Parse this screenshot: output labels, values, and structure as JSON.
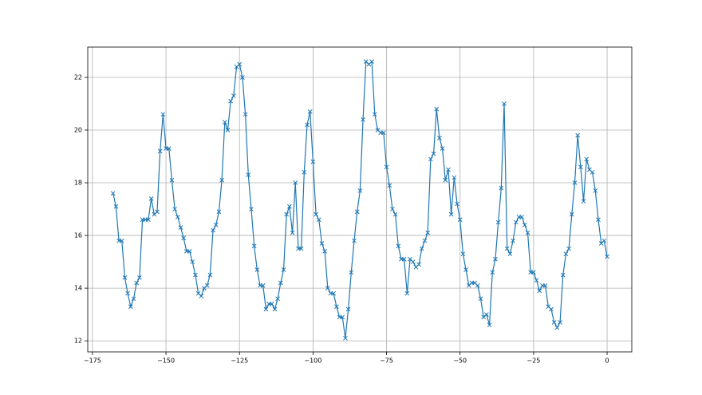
{
  "chart_data": {
    "type": "line",
    "marker": "x",
    "grid": true,
    "x": [
      -168,
      -167,
      -166,
      -165,
      -164,
      -163,
      -162,
      -161,
      -160,
      -159,
      -158,
      -157,
      -156,
      -155,
      -154,
      -153,
      -152,
      -151,
      -150,
      -149,
      -148,
      -147,
      -146,
      -145,
      -144,
      -143,
      -142,
      -141,
      -140,
      -139,
      -138,
      -137,
      -136,
      -135,
      -134,
      -133,
      -132,
      -131,
      -130,
      -129,
      -128,
      -127,
      -126,
      -125,
      -124,
      -123,
      -122,
      -121,
      -120,
      -119,
      -118,
      -117,
      -116,
      -115,
      -114,
      -113,
      -112,
      -111,
      -110,
      -109,
      -108,
      -107,
      -106,
      -105,
      -104,
      -103,
      -102,
      -101,
      -100,
      -99,
      -98,
      -97,
      -96,
      -95,
      -94,
      -93,
      -92,
      -91,
      -90,
      -89,
      -88,
      -87,
      -86,
      -85,
      -84,
      -83,
      -82,
      -81,
      -80,
      -79,
      -78,
      -77,
      -76,
      -75,
      -74,
      -73,
      -72,
      -71,
      -70,
      -69,
      -68,
      -67,
      -66,
      -65,
      -64,
      -63,
      -62,
      -61,
      -60,
      -59,
      -58,
      -57,
      -56,
      -55,
      -54,
      -53,
      -52,
      -51,
      -50,
      -49,
      -48,
      -47,
      -46,
      -45,
      -44,
      -43,
      -42,
      -41,
      -40,
      -39,
      -38,
      -37,
      -36,
      -35,
      -34,
      -33,
      -32,
      -31,
      -30,
      -29,
      -28,
      -27,
      -26,
      -25,
      -24,
      -23,
      -22,
      -21,
      -20,
      -19,
      -18,
      -17,
      -16,
      -15,
      -14,
      -13,
      -12,
      -11,
      -10,
      -9,
      -8,
      -7,
      -6,
      -5,
      -4,
      -3,
      -2,
      -1,
      0
    ],
    "series": [
      {
        "color": "#1f77b4",
        "values": [
          17.6,
          17.1,
          15.8,
          15.8,
          14.4,
          13.8,
          13.3,
          13.6,
          14.2,
          14.4,
          16.6,
          16.6,
          16.6,
          17.4,
          16.8,
          16.9,
          19.2,
          20.6,
          19.3,
          19.3,
          18.1,
          17.0,
          16.7,
          16.3,
          15.9,
          15.4,
          15.4,
          15.0,
          14.5,
          13.8,
          13.7,
          14.0,
          14.1,
          14.5,
          16.2,
          16.4,
          16.9,
          18.1,
          20.3,
          20.0,
          21.1,
          21.3,
          22.4,
          22.5,
          22.0,
          20.6,
          18.3,
          17.0,
          15.6,
          14.7,
          14.1,
          14.1,
          13.2,
          13.4,
          13.4,
          13.2,
          13.6,
          14.2,
          14.7,
          16.8,
          17.1,
          16.1,
          18.0,
          15.5,
          15.5,
          18.4,
          20.2,
          20.7,
          18.8,
          16.8,
          16.6,
          15.7,
          15.4,
          14.0,
          13.8,
          13.8,
          13.3,
          12.9,
          12.9,
          12.1,
          13.2,
          14.6,
          15.8,
          16.9,
          17.7,
          20.4,
          22.6,
          22.5,
          22.6,
          20.6,
          20.0,
          19.9,
          19.9,
          18.6,
          17.9,
          17.0,
          16.8,
          15.6,
          15.1,
          15.1,
          13.8,
          15.1,
          15.0,
          14.8,
          14.9,
          15.5,
          15.8,
          16.1,
          18.9,
          19.1,
          20.8,
          19.7,
          19.3,
          18.1,
          18.5,
          16.8,
          18.2,
          17.2,
          16.6,
          15.3,
          14.7,
          14.1,
          14.2,
          14.2,
          14.1,
          13.6,
          12.9,
          13.0,
          12.6,
          14.6,
          15.1,
          16.5,
          17.8,
          21.0,
          15.5,
          15.3,
          15.8,
          16.5,
          16.7,
          16.7,
          16.4,
          16.1,
          14.6,
          14.6,
          14.3,
          13.9,
          14.1,
          14.1,
          13.3,
          13.2,
          12.7,
          12.5,
          12.7,
          14.5,
          15.3,
          15.5,
          16.8,
          18.0,
          19.8,
          18.6,
          17.3,
          18.9,
          18.5,
          18.4,
          17.7,
          16.6,
          15.7,
          15.8,
          15.2
        ]
      }
    ],
    "xlim": [
      -176.6,
      8.4
    ],
    "ylim": [
      11.58,
      23.15
    ],
    "xticks": [
      {
        "value": -175,
        "label": "−175"
      },
      {
        "value": -150,
        "label": "−150"
      },
      {
        "value": -125,
        "label": "−125"
      },
      {
        "value": -100,
        "label": "−100"
      },
      {
        "value": -75,
        "label": "−75"
      },
      {
        "value": -50,
        "label": "−50"
      },
      {
        "value": -25,
        "label": "−25"
      },
      0
    ],
    "yticks": [
      12,
      14,
      16,
      18,
      20,
      22
    ]
  }
}
